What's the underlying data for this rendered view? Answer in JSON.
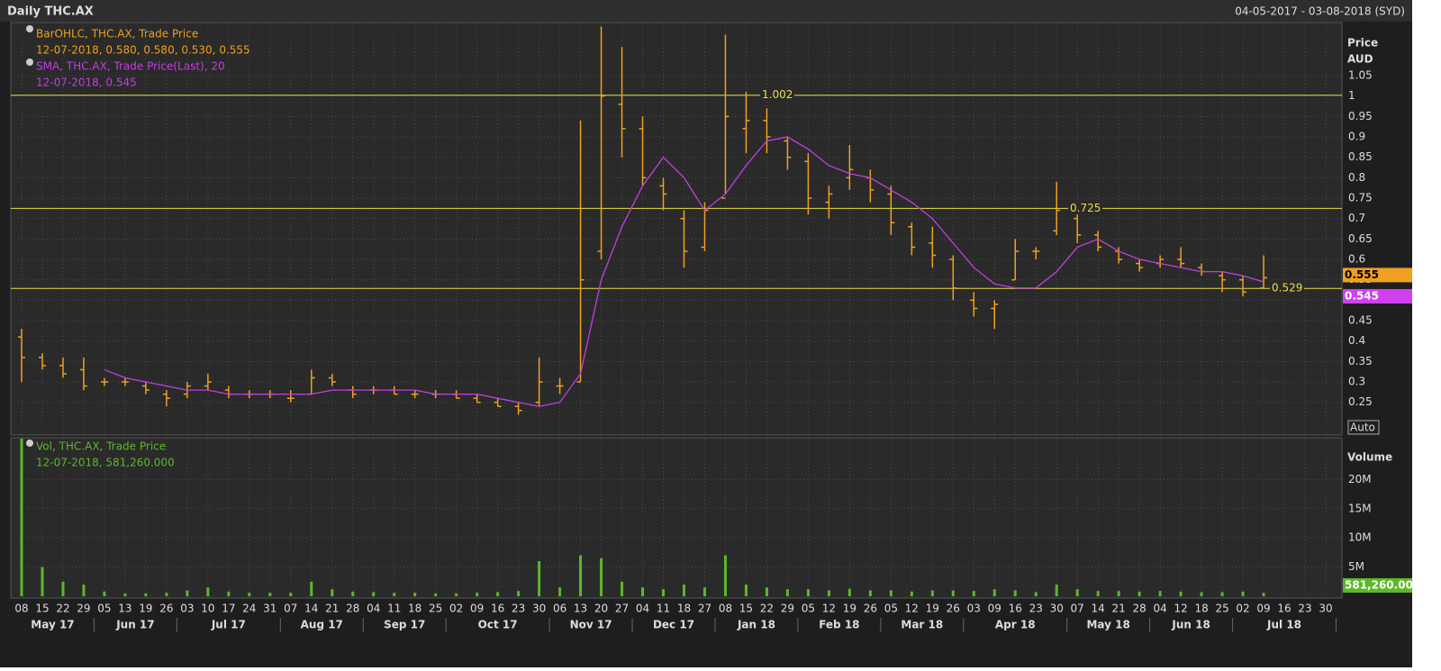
{
  "chart_data": {
    "type": "ohlc",
    "title": "Daily THC.AX",
    "date_range": "04-05-2017 - 03-08-2018 (SYD)",
    "price_axis_label": "Price",
    "currency_label": "AUD",
    "volume_axis_label": "Volume",
    "auto_label": "Auto",
    "legend": {
      "ohlc_name": "BarOHLC, THC.AX, Trade Price",
      "ohlc_last": "12-07-2018, 0.580, 0.580, 0.530, 0.555",
      "sma_name": "SMA, THC.AX, Trade Price(Last),  20",
      "sma_last": "12-07-2018, 0.545",
      "vol_name": "Vol, THC.AX, Trade Price",
      "vol_last": "12-07-2018, 581,260.000"
    },
    "last_labels": {
      "price": "0.555",
      "sma": "0.545",
      "volume": "581,260.00"
    },
    "categories": [
      "08",
      "15",
      "22",
      "29",
      "05",
      "13",
      "19",
      "26",
      "03",
      "10",
      "17",
      "24",
      "31",
      "07",
      "14",
      "21",
      "28",
      "04",
      "11",
      "18",
      "25",
      "02",
      "09",
      "16",
      "23",
      "30",
      "06",
      "13",
      "20",
      "27",
      "04",
      "11",
      "18",
      "27",
      "08",
      "15",
      "22",
      "29",
      "05",
      "12",
      "19",
      "26",
      "05",
      "12",
      "19",
      "26",
      "03",
      "09",
      "16",
      "23",
      "30",
      "07",
      "14",
      "21",
      "28",
      "04",
      "12",
      "18",
      "25",
      "02",
      "09",
      "16",
      "23",
      "30"
    ],
    "months": [
      "May 17",
      "Jun 17",
      "Jul 17",
      "Aug 17",
      "Sep 17",
      "Oct 17",
      "Nov 17",
      "Dec 17",
      "Jan 18",
      "Feb 18",
      "Mar 18",
      "Apr 18",
      "May 18",
      "Jun 18",
      "Jul 18"
    ],
    "ohlc": {
      "color": "#f0a020",
      "open": [
        0.41,
        0.36,
        0.34,
        0.33,
        0.3,
        0.3,
        0.29,
        0.27,
        0.27,
        0.29,
        0.28,
        0.27,
        0.27,
        0.26,
        0.27,
        0.31,
        0.28,
        0.28,
        0.28,
        0.27,
        0.27,
        0.27,
        0.26,
        0.25,
        0.24,
        0.25,
        0.29,
        0.3,
        0.62,
        0.98,
        0.92,
        0.78,
        0.7,
        0.63,
        0.75,
        0.92,
        0.94,
        0.89,
        0.84,
        0.74,
        0.8,
        0.8,
        0.76,
        0.68,
        0.64,
        0.6,
        0.5,
        0.48,
        0.55,
        0.62,
        0.67,
        0.7,
        0.66,
        0.62,
        0.59,
        0.59,
        0.6,
        0.58,
        0.56,
        0.55,
        0.53,
        null,
        null,
        null
      ],
      "high": [
        0.43,
        0.37,
        0.36,
        0.36,
        0.31,
        0.31,
        0.3,
        0.28,
        0.3,
        0.32,
        0.29,
        0.28,
        0.28,
        0.28,
        0.33,
        0.32,
        0.29,
        0.29,
        0.29,
        0.28,
        0.28,
        0.28,
        0.27,
        0.26,
        0.25,
        0.36,
        0.31,
        0.94,
        1.17,
        1.12,
        0.95,
        0.8,
        0.72,
        0.74,
        1.15,
        1.01,
        0.97,
        0.9,
        0.86,
        0.78,
        0.88,
        0.82,
        0.78,
        0.69,
        0.68,
        0.61,
        0.52,
        0.5,
        0.65,
        0.63,
        0.79,
        0.71,
        0.67,
        0.63,
        0.6,
        0.61,
        0.63,
        0.59,
        0.57,
        0.56,
        0.61,
        null,
        null,
        null
      ],
      "low": [
        0.3,
        0.33,
        0.31,
        0.28,
        0.29,
        0.29,
        0.27,
        0.24,
        0.26,
        0.28,
        0.26,
        0.26,
        0.26,
        0.25,
        0.27,
        0.29,
        0.26,
        0.27,
        0.27,
        0.26,
        0.26,
        0.26,
        0.25,
        0.24,
        0.22,
        0.24,
        0.27,
        0.3,
        0.6,
        0.85,
        0.78,
        0.72,
        0.58,
        0.62,
        0.76,
        0.86,
        0.86,
        0.82,
        0.71,
        0.7,
        0.77,
        0.74,
        0.66,
        0.61,
        0.58,
        0.5,
        0.46,
        0.43,
        0.55,
        0.6,
        0.66,
        0.64,
        0.62,
        0.59,
        0.57,
        0.58,
        0.58,
        0.56,
        0.52,
        0.51,
        0.53,
        null,
        null,
        null
      ],
      "close": [
        0.36,
        0.34,
        0.32,
        0.29,
        0.3,
        0.3,
        0.28,
        0.26,
        0.29,
        0.3,
        0.27,
        0.27,
        0.27,
        0.26,
        0.31,
        0.3,
        0.27,
        0.28,
        0.27,
        0.27,
        0.27,
        0.26,
        0.25,
        0.24,
        0.23,
        0.3,
        0.29,
        0.55,
        1.0,
        0.92,
        0.8,
        0.76,
        0.62,
        0.72,
        0.95,
        0.94,
        0.9,
        0.85,
        0.75,
        0.76,
        0.82,
        0.77,
        0.69,
        0.63,
        0.61,
        0.53,
        0.48,
        0.49,
        0.62,
        0.62,
        0.72,
        0.66,
        0.63,
        0.6,
        0.58,
        0.6,
        0.59,
        0.57,
        0.55,
        0.52,
        0.555,
        null,
        null,
        null
      ]
    },
    "sma": {
      "color": "#c040e0",
      "values": [
        null,
        null,
        null,
        null,
        0.33,
        0.31,
        0.3,
        0.29,
        0.28,
        0.28,
        0.27,
        0.27,
        0.27,
        0.27,
        0.27,
        0.28,
        0.28,
        0.28,
        0.28,
        0.28,
        0.27,
        0.27,
        0.27,
        0.26,
        0.25,
        0.24,
        0.25,
        0.32,
        0.55,
        0.68,
        0.78,
        0.85,
        0.8,
        0.72,
        0.76,
        0.83,
        0.89,
        0.9,
        0.87,
        0.83,
        0.81,
        0.8,
        0.77,
        0.74,
        0.7,
        0.64,
        0.58,
        0.54,
        0.53,
        0.53,
        0.57,
        0.63,
        0.65,
        0.62,
        0.6,
        0.59,
        0.58,
        0.57,
        0.57,
        0.56,
        0.545,
        null,
        null,
        null
      ]
    },
    "volume": {
      "color": "#5cb82a",
      "values": [
        27000000,
        5000000,
        2500000,
        2000000,
        800000,
        500000,
        500000,
        600000,
        1000000,
        1500000,
        800000,
        600000,
        600000,
        600000,
        2500000,
        1200000,
        800000,
        700000,
        600000,
        600000,
        500000,
        500000,
        600000,
        700000,
        900000,
        6000000,
        1500000,
        7000000,
        6500000,
        2500000,
        1500000,
        1200000,
        2000000,
        1500000,
        7000000,
        2000000,
        1500000,
        1200000,
        1200000,
        1000000,
        1300000,
        1000000,
        1000000,
        800000,
        1000000,
        1000000,
        900000,
        1200000,
        1000000,
        700000,
        2000000,
        1200000,
        900000,
        900000,
        800000,
        900000,
        800000,
        700000,
        700000,
        800000,
        581260,
        null,
        null,
        null
      ]
    },
    "hlines": [
      1.002,
      0.725,
      0.529
    ],
    "hline_color": "#e8e040",
    "ylim": [
      0.17,
      1.18
    ],
    "yticks": [
      0.25,
      0.3,
      0.35,
      0.4,
      0.45,
      0.5,
      0.55,
      0.6,
      0.65,
      0.7,
      0.75,
      0.8,
      0.85,
      0.9,
      0.95,
      1,
      1.05
    ],
    "vol_ylim": [
      0,
      27000000
    ],
    "vol_yticks": [
      {
        "value": 5000000,
        "label": "5M"
      },
      {
        "value": 10000000,
        "label": "10M"
      },
      {
        "value": 15000000,
        "label": "15M"
      },
      {
        "value": 20000000,
        "label": "20M"
      }
    ],
    "grid": true
  }
}
